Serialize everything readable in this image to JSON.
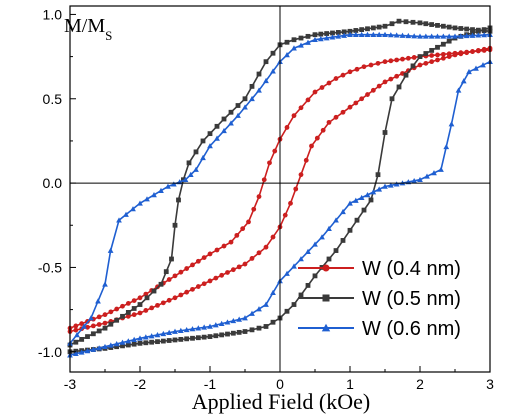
{
  "chart_data": {
    "type": "line",
    "corner_label": "M/M",
    "corner_label_sub": "S",
    "xlabel": "Applied Field (kOe)",
    "ylabel": "",
    "xlim": [
      -3,
      3
    ],
    "ylim": [
      -1.12,
      1.05
    ],
    "xticks": [
      -3,
      -2,
      -1,
      0,
      1,
      2,
      3
    ],
    "xtick_labels": [
      "-3",
      "-2",
      "-1",
      "0",
      "1",
      "2",
      "3"
    ],
    "yticks": [
      -1.0,
      -0.5,
      0.0,
      0.5,
      1.0
    ],
    "ytick_labels": [
      "-1.0",
      "-0.5",
      "0.0",
      "0.5",
      "1.0"
    ],
    "legend_position": "bottom-right",
    "series": [
      {
        "name": "W (0.4 nm)",
        "color": "#cc1f1f",
        "marker": "circle",
        "descending": [
          [
            3.0,
            0.79
          ],
          [
            2.5,
            0.77
          ],
          [
            2.0,
            0.75
          ],
          [
            1.5,
            0.72
          ],
          [
            1.2,
            0.69
          ],
          [
            1.0,
            0.66
          ],
          [
            0.8,
            0.62
          ],
          [
            0.5,
            0.54
          ],
          [
            0.2,
            0.4
          ],
          [
            0.0,
            0.26
          ],
          [
            -0.15,
            0.12
          ],
          [
            -0.3,
            -0.08
          ],
          [
            -0.45,
            -0.23
          ],
          [
            -0.7,
            -0.35
          ],
          [
            -1.0,
            -0.42
          ],
          [
            -1.5,
            -0.55
          ],
          [
            -2.0,
            -0.68
          ],
          [
            -2.5,
            -0.78
          ],
          [
            -3.0,
            -0.86
          ]
        ],
        "ascending": [
          [
            -3.0,
            -0.88
          ],
          [
            -2.5,
            -0.83
          ],
          [
            -2.0,
            -0.77
          ],
          [
            -1.5,
            -0.68
          ],
          [
            -1.0,
            -0.58
          ],
          [
            -0.5,
            -0.48
          ],
          [
            -0.2,
            -0.38
          ],
          [
            0.0,
            -0.26
          ],
          [
            0.15,
            -0.12
          ],
          [
            0.3,
            0.05
          ],
          [
            0.45,
            0.22
          ],
          [
            0.7,
            0.36
          ],
          [
            1.0,
            0.45
          ],
          [
            1.5,
            0.6
          ],
          [
            2.0,
            0.7
          ],
          [
            2.5,
            0.76
          ],
          [
            3.0,
            0.8
          ]
        ]
      },
      {
        "name": "W (0.5 nm)",
        "color": "#3a3a3a",
        "marker": "square",
        "descending": [
          [
            3.0,
            0.9
          ],
          [
            2.5,
            0.92
          ],
          [
            2.0,
            0.95
          ],
          [
            1.7,
            0.96
          ],
          [
            1.5,
            0.93
          ],
          [
            1.0,
            0.9
          ],
          [
            0.5,
            0.88
          ],
          [
            0.2,
            0.85
          ],
          [
            0.0,
            0.82
          ],
          [
            -0.2,
            0.72
          ],
          [
            -0.5,
            0.5
          ],
          [
            -0.8,
            0.38
          ],
          [
            -1.1,
            0.25
          ],
          [
            -1.3,
            0.12
          ],
          [
            -1.38,
            0.02
          ],
          [
            -1.45,
            -0.1
          ],
          [
            -1.5,
            -0.25
          ],
          [
            -1.55,
            -0.45
          ],
          [
            -1.7,
            -0.6
          ],
          [
            -2.0,
            -0.72
          ],
          [
            -2.5,
            -0.86
          ],
          [
            -3.0,
            -0.96
          ]
        ],
        "ascending": [
          [
            -3.0,
            -1.0
          ],
          [
            -2.5,
            -0.98
          ],
          [
            -2.0,
            -0.95
          ],
          [
            -1.5,
            -0.93
          ],
          [
            -1.0,
            -0.91
          ],
          [
            -0.5,
            -0.88
          ],
          [
            -0.2,
            -0.85
          ],
          [
            0.0,
            -0.8
          ],
          [
            0.2,
            -0.72
          ],
          [
            0.5,
            -0.55
          ],
          [
            0.8,
            -0.4
          ],
          [
            1.1,
            -0.22
          ],
          [
            1.3,
            -0.1
          ],
          [
            1.4,
            0.05
          ],
          [
            1.5,
            0.3
          ],
          [
            1.6,
            0.5
          ],
          [
            1.8,
            0.64
          ],
          [
            2.0,
            0.75
          ],
          [
            2.5,
            0.86
          ],
          [
            3.0,
            0.92
          ]
        ]
      },
      {
        "name": "W (0.6 nm)",
        "color": "#1f5fd1",
        "marker": "triangle",
        "descending": [
          [
            3.0,
            0.88
          ],
          [
            2.5,
            0.87
          ],
          [
            2.0,
            0.87
          ],
          [
            1.5,
            0.88
          ],
          [
            1.0,
            0.88
          ],
          [
            0.5,
            0.85
          ],
          [
            0.2,
            0.8
          ],
          [
            0.0,
            0.72
          ],
          [
            -0.3,
            0.55
          ],
          [
            -0.6,
            0.4
          ],
          [
            -1.0,
            0.22
          ],
          [
            -1.2,
            0.08
          ],
          [
            -1.35,
            0.02
          ],
          [
            -1.6,
            -0.02
          ],
          [
            -2.0,
            -0.12
          ],
          [
            -2.3,
            -0.22
          ],
          [
            -2.42,
            -0.4
          ],
          [
            -2.5,
            -0.6
          ],
          [
            -2.7,
            -0.8
          ],
          [
            -3.0,
            -0.95
          ]
        ],
        "ascending": [
          [
            -3.0,
            -1.02
          ],
          [
            -2.5,
            -0.97
          ],
          [
            -2.0,
            -0.92
          ],
          [
            -1.5,
            -0.88
          ],
          [
            -1.0,
            -0.85
          ],
          [
            -0.5,
            -0.8
          ],
          [
            -0.2,
            -0.72
          ],
          [
            0.0,
            -0.58
          ],
          [
            0.3,
            -0.45
          ],
          [
            0.6,
            -0.32
          ],
          [
            1.0,
            -0.12
          ],
          [
            1.5,
            -0.02
          ],
          [
            2.0,
            0.02
          ],
          [
            2.3,
            0.08
          ],
          [
            2.45,
            0.35
          ],
          [
            2.55,
            0.55
          ],
          [
            2.7,
            0.66
          ],
          [
            3.0,
            0.72
          ]
        ]
      }
    ]
  }
}
